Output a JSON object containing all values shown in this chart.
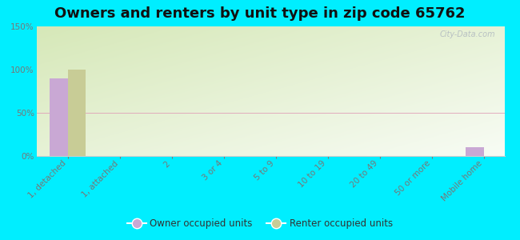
{
  "title": "Owners and renters by unit type in zip code 65762",
  "categories": [
    "1, detached",
    "1, attached",
    "2",
    "3 or 4",
    "5 to 9",
    "10 to 19",
    "20 to 49",
    "50 or more",
    "Mobile home"
  ],
  "owner_values": [
    90,
    0,
    0,
    0,
    0,
    0,
    0,
    0,
    10
  ],
  "renter_values": [
    100,
    0,
    0,
    0,
    0,
    0,
    0,
    0,
    0
  ],
  "owner_color": "#c9a8d4",
  "renter_color": "#c8cc96",
  "background_color": "#00eeff",
  "plot_bg_color_tl": "#d6e8b8",
  "plot_bg_color_br": "#f8fcf5",
  "ylim": [
    0,
    150
  ],
  "yticks": [
    0,
    50,
    100,
    150
  ],
  "legend_owner": "Owner occupied units",
  "legend_renter": "Renter occupied units",
  "bar_width": 0.35,
  "title_fontsize": 13,
  "tick_fontsize": 7.5,
  "watermark": "City-Data.com",
  "grid_color": "#e8a8b8",
  "spine_color": "#cccccc"
}
